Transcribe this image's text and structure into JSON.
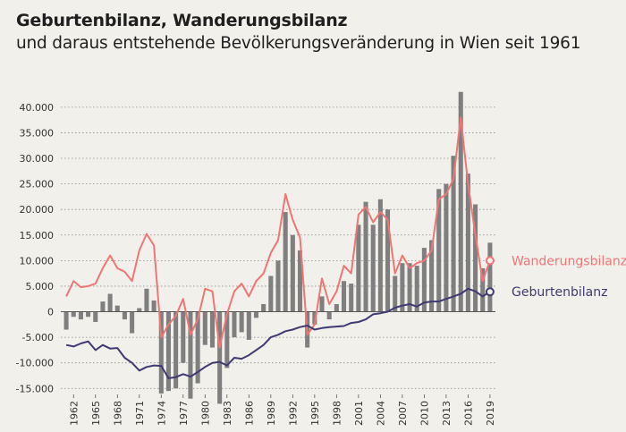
{
  "title": "Geburtenbilanz, Wanderungsbilanz",
  "subtitle": "und daraus entstehende Bevölkerungsveränderung in Wien seit 1961",
  "colors": {
    "background": "#f2f0ea",
    "bars": "#7f7f7f",
    "wanderung": "#f07575",
    "geburten": "#3f3a72",
    "grid": "#8a8a8a"
  },
  "chart_data": {
    "type": "bar",
    "x": [
      1961,
      1962,
      1963,
      1964,
      1965,
      1966,
      1967,
      1968,
      1969,
      1970,
      1971,
      1972,
      1973,
      1974,
      1975,
      1976,
      1977,
      1978,
      1979,
      1980,
      1981,
      1982,
      1983,
      1984,
      1985,
      1986,
      1987,
      1988,
      1989,
      1990,
      1991,
      1992,
      1993,
      1994,
      1995,
      1996,
      1997,
      1998,
      1999,
      2000,
      2001,
      2002,
      2003,
      2004,
      2005,
      2006,
      2007,
      2008,
      2009,
      2010,
      2011,
      2012,
      2013,
      2014,
      2015,
      2016,
      2017,
      2018,
      2019
    ],
    "x_tick_labels": [
      "1962",
      "1965",
      "1968",
      "1971",
      "1974",
      "1977",
      "1980",
      "1983",
      "1986",
      "1989",
      "1992",
      "1995",
      "1998",
      "2001",
      "2004",
      "2007",
      "2010",
      "2013",
      "2016",
      "2019"
    ],
    "ylim": [
      -16000,
      44000
    ],
    "y_ticks": [
      -15000,
      -10000,
      -5000,
      0,
      5000,
      10000,
      15000,
      20000,
      25000,
      30000,
      35000,
      40000
    ],
    "y_tick_labels": [
      "-15.000",
      "-10.000",
      "-5.000",
      "0",
      "5.000",
      "10.000",
      "15.000",
      "20.000",
      "25.000",
      "30.000",
      "35.000",
      "40.000"
    ],
    "grid": "horizontal dotted",
    "series": [
      {
        "type": "bar",
        "values": [
          -3500,
          -1000,
          -1500,
          -1000,
          -2000,
          2000,
          3500,
          1200,
          -1500,
          -4200,
          700,
          4500,
          2200,
          -16000,
          -15500,
          -15000,
          -10000,
          -17000,
          -14000,
          -6500,
          -7000,
          -18000,
          -11000,
          -5000,
          -4000,
          -5500,
          -1200,
          1500,
          7000,
          10000,
          19500,
          15000,
          12000,
          -7000,
          -2500,
          3000,
          -1500,
          1500,
          6000,
          5500,
          17000,
          21500,
          17000,
          22000,
          20000,
          7000,
          9500,
          9500,
          9000,
          12500,
          14000,
          24000,
          25000,
          30500,
          43000,
          27000,
          21000,
          8500,
          13500
        ]
      },
      {
        "name": "Wanderungsbilanz",
        "type": "line",
        "values": [
          3000,
          6000,
          4800,
          5000,
          5500,
          8500,
          11000,
          8500,
          7800,
          6000,
          12000,
          15200,
          13000,
          -5000,
          -2500,
          -800,
          2500,
          -4500,
          -1500,
          4500,
          4000,
          -7000,
          -500,
          4000,
          5500,
          3000,
          6000,
          7500,
          11500,
          14000,
          23000,
          18000,
          14500,
          -4500,
          -2500,
          6500,
          1500,
          4000,
          9000,
          7500,
          19000,
          20500,
          17500,
          19500,
          18000,
          7500,
          11000,
          8500,
          9500,
          10000,
          12000,
          22000,
          23000,
          26000,
          38000,
          25000,
          15000,
          6000,
          10000
        ]
      },
      {
        "name": "Geburtenbilanz",
        "type": "line",
        "values": [
          -6500,
          -6800,
          -6200,
          -5800,
          -7500,
          -6500,
          -7200,
          -7100,
          -9000,
          -10000,
          -11500,
          -10800,
          -10500,
          -10600,
          -13000,
          -12800,
          -12200,
          -12700,
          -11800,
          -10800,
          -10000,
          -9800,
          -10500,
          -9000,
          -9200,
          -8500,
          -7500,
          -6500,
          -5000,
          -4500,
          -3800,
          -3500,
          -3000,
          -2700,
          -3500,
          -3200,
          -3000,
          -2900,
          -2800,
          -2200,
          -2000,
          -1500,
          -500,
          -300,
          0,
          800,
          1200,
          1500,
          1000,
          1800,
          2000,
          2000,
          2500,
          3000,
          3500,
          4500,
          4000,
          3000,
          3900
        ]
      }
    ]
  }
}
